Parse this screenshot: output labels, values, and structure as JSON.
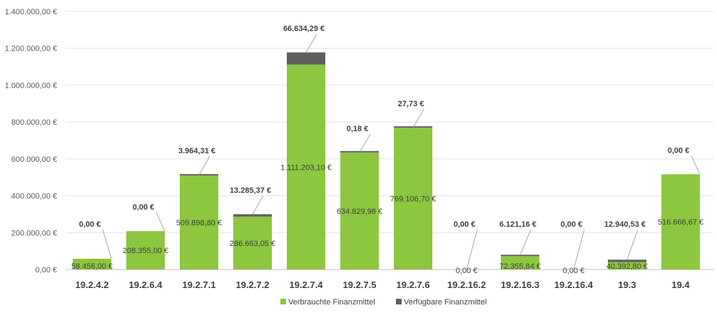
{
  "chart_data": {
    "type": "bar",
    "stacked": true,
    "categories": [
      "19.2.4.2",
      "19.2.6.4",
      "19.2.7.1",
      "19.2.7.2",
      "19.2.7.4",
      "19.2.7.5",
      "19.2.7.6",
      "19.2.16.2",
      "19.2.16.3",
      "19.2.16.4",
      "19.3",
      "19.4"
    ],
    "series": [
      {
        "name": "Verbrauchte Finanzmittel",
        "color": "#8DC63F",
        "values": [
          58456.0,
          208355.0,
          509898.8,
          286663.05,
          1111203.1,
          634829.98,
          769106.7,
          0.0,
          72355.84,
          0.0,
          40392.8,
          516666.67
        ],
        "labels": [
          "58.456,00 €",
          "208.355,00 €",
          "509.898,80 €",
          "286.663,05 €",
          "1.111.203,10 €",
          "634.829,98 €",
          "769.106,70 €",
          "0,00 €",
          "72.355,84 €",
          "0,00 €",
          "40.392,80 €",
          "516.666,67 €"
        ]
      },
      {
        "name": "Verfügbare Finanzmittel",
        "color": "#5F5F5F",
        "values": [
          0.0,
          0.0,
          3964.31,
          13285.37,
          66634.29,
          0.18,
          27.73,
          0.0,
          6121.16,
          0.0,
          12940.53,
          0.0
        ],
        "labels": [
          "0,00 €",
          "0,00 €",
          "3.964,31 €",
          "13.285,37 €",
          "66.634,29 €",
          "0,18 €",
          "27,73 €",
          "0,00 €",
          "6.121,16 €",
          "0,00 €",
          "12.940,53 €",
          "0,00 €"
        ]
      }
    ],
    "ylim": [
      0,
      1400000
    ],
    "yticks": [
      0,
      200000,
      400000,
      600000,
      800000,
      1000000,
      1200000,
      1400000
    ],
    "ytick_labels": [
      "0,00 €",
      "200.000,00 €",
      "400.000,00 €",
      "600.000,00 €",
      "800.000,00 €",
      "1.000.000,00 €",
      "1.200.000,00 €",
      "1.400.000,00 €"
    ],
    "grid": true,
    "legend": "bottom-center",
    "title": "",
    "xlabel": "",
    "ylabel": ""
  }
}
